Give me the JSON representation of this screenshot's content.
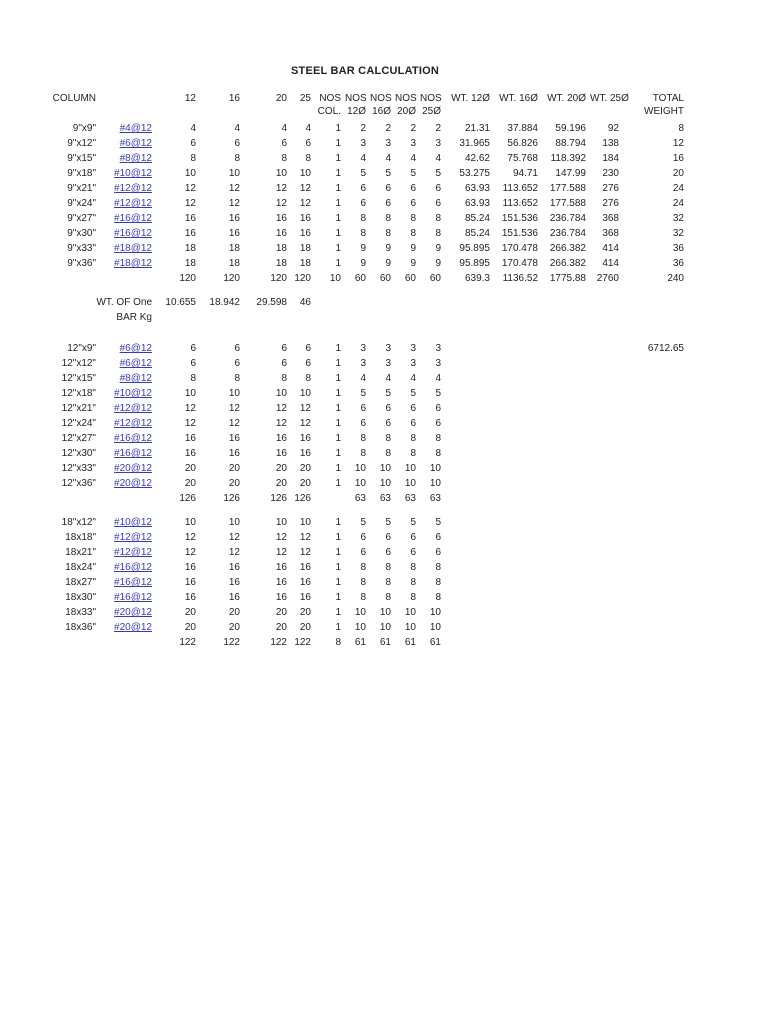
{
  "title": "STEEL BAR CALCULATION",
  "colors": {
    "link": "#3a3abf",
    "text": "#232323"
  },
  "header": {
    "column_label": "COLUMN",
    "size_labels": [
      "12",
      "16",
      "20",
      "25"
    ],
    "nos_labels": [
      {
        "top": "NOS",
        "bottom": "COL."
      },
      {
        "top": "NOS",
        "bottom": "12Ø"
      },
      {
        "top": "NOS",
        "bottom": "16Ø"
      },
      {
        "top": "NOS",
        "bottom": "20Ø"
      },
      {
        "top": "NOS",
        "bottom": "25Ø"
      }
    ],
    "wt_labels": [
      "WT. 12Ø",
      "WT. 16Ø",
      "WT. 20Ø",
      "WT. 25Ø"
    ],
    "total_label": [
      "TOTAL",
      "WEIGHT"
    ]
  },
  "one_bar_weight": {
    "label_line1": "WT. OF One",
    "label_line2": "BAR Kg",
    "values": [
      "10.655",
      "18.942",
      "29.598",
      "46"
    ]
  },
  "tables": [
    {
      "rows": [
        {
          "label": "9\"x9\"",
          "link": "#4@12",
          "values": [
            "4",
            "4",
            "4",
            "4",
            "1",
            "2",
            "2",
            "2",
            "2",
            "21.31",
            "37.884",
            "59.196",
            "92",
            "8"
          ]
        },
        {
          "label": "9\"x12\"",
          "link": "#6@12",
          "values": [
            "6",
            "6",
            "6",
            "6",
            "1",
            "3",
            "3",
            "3",
            "3",
            "31.965",
            "56.826",
            "88.794",
            "138",
            "12"
          ]
        },
        {
          "label": "9\"x15\"",
          "link": "#8@12",
          "values": [
            "8",
            "8",
            "8",
            "8",
            "1",
            "4",
            "4",
            "4",
            "4",
            "42.62",
            "75.768",
            "118.392",
            "184",
            "16"
          ]
        },
        {
          "label": "9\"x18\"",
          "link": "#10@12",
          "values": [
            "10",
            "10",
            "10",
            "10",
            "1",
            "5",
            "5",
            "5",
            "5",
            "53.275",
            "94.71",
            "147.99",
            "230",
            "20"
          ]
        },
        {
          "label": "9\"x21\"",
          "link": "#12@12",
          "values": [
            "12",
            "12",
            "12",
            "12",
            "1",
            "6",
            "6",
            "6",
            "6",
            "63.93",
            "113.652",
            "177.588",
            "276",
            "24"
          ]
        },
        {
          "label": "9\"x24\"",
          "link": "#12@12",
          "values": [
            "12",
            "12",
            "12",
            "12",
            "1",
            "6",
            "6",
            "6",
            "6",
            "63.93",
            "113.652",
            "177.588",
            "276",
            "24"
          ]
        },
        {
          "label": "9\"x27\"",
          "link": "#16@12",
          "values": [
            "16",
            "16",
            "16",
            "16",
            "1",
            "8",
            "8",
            "8",
            "8",
            "85.24",
            "151.536",
            "236.784",
            "368",
            "32"
          ]
        },
        {
          "label": "9\"x30\"",
          "link": "#16@12",
          "values": [
            "16",
            "16",
            "16",
            "16",
            "1",
            "8",
            "8",
            "8",
            "8",
            "85.24",
            "151.536",
            "236.784",
            "368",
            "32"
          ]
        },
        {
          "label": "9\"x33\"",
          "link": "#18@12",
          "values": [
            "18",
            "18",
            "18",
            "18",
            "1",
            "9",
            "9",
            "9",
            "9",
            "95.895",
            "170.478",
            "266.382",
            "414",
            "36"
          ]
        },
        {
          "label": "9\"x36\"",
          "link": "#18@12",
          "values": [
            "18",
            "18",
            "18",
            "18",
            "1",
            "9",
            "9",
            "9",
            "9",
            "95.895",
            "170.478",
            "266.382",
            "414",
            "36"
          ]
        }
      ],
      "totals": [
        "120",
        "120",
        "120",
        "120",
        "10",
        "60",
        "60",
        "60",
        "60",
        "639.3",
        "1136.52",
        "1775.88",
        "2760",
        "240"
      ]
    },
    {
      "rows": [
        {
          "label": "12\"x9\"",
          "link": "#6@12",
          "values": [
            "6",
            "6",
            "6",
            "6",
            "1",
            "3",
            "3",
            "3",
            "3",
            "",
            "",
            "",
            "",
            "6712.65"
          ]
        },
        {
          "label": "12\"x12\"",
          "link": "#6@12",
          "values": [
            "6",
            "6",
            "6",
            "6",
            "1",
            "3",
            "3",
            "3",
            "3"
          ]
        },
        {
          "label": "12\"x15\"",
          "link": "#8@12",
          "values": [
            "8",
            "8",
            "8",
            "8",
            "1",
            "4",
            "4",
            "4",
            "4"
          ]
        },
        {
          "label": "12\"x18\"",
          "link": "#10@12",
          "values": [
            "10",
            "10",
            "10",
            "10",
            "1",
            "5",
            "5",
            "5",
            "5"
          ]
        },
        {
          "label": "12\"x21\"",
          "link": "#12@12",
          "values": [
            "12",
            "12",
            "12",
            "12",
            "1",
            "6",
            "6",
            "6",
            "6"
          ]
        },
        {
          "label": "12\"x24\"",
          "link": "#12@12",
          "values": [
            "12",
            "12",
            "12",
            "12",
            "1",
            "6",
            "6",
            "6",
            "6"
          ]
        },
        {
          "label": "12\"x27\"",
          "link": "#16@12",
          "values": [
            "16",
            "16",
            "16",
            "16",
            "1",
            "8",
            "8",
            "8",
            "8"
          ]
        },
        {
          "label": "12\"x30\"",
          "link": "#16@12",
          "values": [
            "16",
            "16",
            "16",
            "16",
            "1",
            "8",
            "8",
            "8",
            "8"
          ]
        },
        {
          "label": "12\"x33\"",
          "link": "#20@12",
          "values": [
            "20",
            "20",
            "20",
            "20",
            "1",
            "10",
            "10",
            "10",
            "10"
          ]
        },
        {
          "label": "12\"x36\"",
          "link": "#20@12",
          "values": [
            "20",
            "20",
            "20",
            "20",
            "1",
            "10",
            "10",
            "10",
            "10"
          ]
        }
      ],
      "totals": [
        "126",
        "126",
        "126",
        "126",
        "",
        "63",
        "63",
        "63",
        "63"
      ]
    },
    {
      "rows": [
        {
          "label": "18\"x12\"",
          "link": "#10@12",
          "values": [
            "10",
            "10",
            "10",
            "10",
            "1",
            "5",
            "5",
            "5",
            "5"
          ]
        },
        {
          "label": "18x18\"",
          "link": "#12@12",
          "values": [
            "12",
            "12",
            "12",
            "12",
            "1",
            "6",
            "6",
            "6",
            "6"
          ]
        },
        {
          "label": "18x21\"",
          "link": "#12@12",
          "values": [
            "12",
            "12",
            "12",
            "12",
            "1",
            "6",
            "6",
            "6",
            "6"
          ]
        },
        {
          "label": "18x24\"",
          "link": "#16@12",
          "values": [
            "16",
            "16",
            "16",
            "16",
            "1",
            "8",
            "8",
            "8",
            "8"
          ]
        },
        {
          "label": "18x27\"",
          "link": "#16@12",
          "values": [
            "16",
            "16",
            "16",
            "16",
            "1",
            "8",
            "8",
            "8",
            "8"
          ]
        },
        {
          "label": "18x30\"",
          "link": "#16@12",
          "values": [
            "16",
            "16",
            "16",
            "16",
            "1",
            "8",
            "8",
            "8",
            "8"
          ]
        },
        {
          "label": "18x33\"",
          "link": "#20@12",
          "values": [
            "20",
            "20",
            "20",
            "20",
            "1",
            "10",
            "10",
            "10",
            "10"
          ]
        },
        {
          "label": "18x36\"",
          "link": "#20@12",
          "values": [
            "20",
            "20",
            "20",
            "20",
            "1",
            "10",
            "10",
            "10",
            "10"
          ]
        }
      ],
      "totals": [
        "122",
        "122",
        "122",
        "122",
        "8",
        "61",
        "61",
        "61",
        "61"
      ]
    }
  ]
}
